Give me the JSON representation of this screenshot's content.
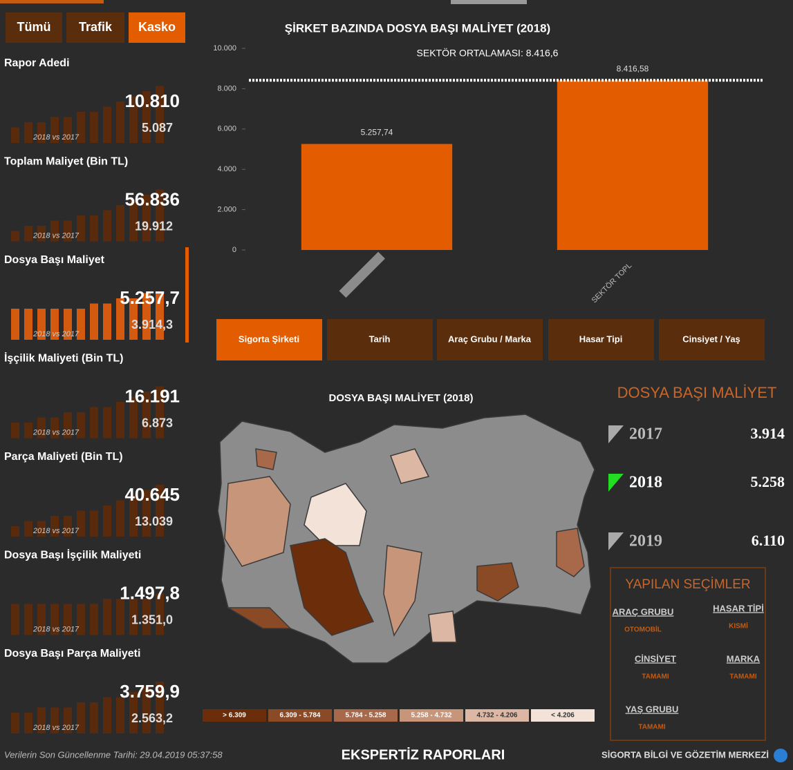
{
  "tabs": [
    "Tümü",
    "Trafik",
    "Kasko"
  ],
  "kpis": [
    {
      "label": "Rapor Adedi",
      "value": "10.810",
      "previous": "5.087",
      "caption": "2018 vs 2017",
      "bars": [
        3,
        4,
        4,
        5,
        5,
        6,
        6,
        7,
        8,
        9,
        10,
        11
      ]
    },
    {
      "label": "Toplam Maliyet (Bin TL)",
      "value": "56.836",
      "previous": "19.912",
      "caption": "2018 vs 2017",
      "bars": [
        2,
        3,
        3,
        4,
        4,
        5,
        5,
        6,
        7,
        8,
        9,
        10
      ]
    },
    {
      "label": "Dosya Başı Maliyet",
      "value": "5.257,7",
      "previous": "3.914,3",
      "caption": "2018 vs 2017",
      "bars": [
        6,
        6,
        6,
        6,
        6,
        6,
        7,
        7,
        8,
        8,
        9,
        9
      ]
    },
    {
      "label": "İşçilik Maliyeti (Bin TL)",
      "value": "16.191",
      "previous": "6.873",
      "caption": "2018 vs 2017",
      "bars": [
        3,
        3,
        4,
        4,
        5,
        5,
        6,
        6,
        7,
        8,
        9,
        10
      ]
    },
    {
      "label": "Parça Maliyeti (Bin TL)",
      "value": "40.645",
      "previous": "13.039",
      "caption": "2018 vs 2017",
      "bars": [
        2,
        3,
        3,
        4,
        4,
        5,
        5,
        6,
        7,
        8,
        9,
        10
      ]
    },
    {
      "label": "Dosya Başı İşçilik Maliyeti",
      "value": "1.497,8",
      "previous": "1.351,0",
      "caption": "2018 vs 2017",
      "bars": [
        6,
        6,
        6,
        6,
        6,
        6,
        6,
        7,
        7,
        7,
        7,
        8
      ]
    },
    {
      "label": "Dosya Başı Parça Maliyeti",
      "value": "3.759,9",
      "previous": "2.563,2",
      "caption": "2018 vs 2017",
      "bars": [
        4,
        4,
        5,
        5,
        5,
        6,
        6,
        7,
        7,
        8,
        9,
        10
      ]
    }
  ],
  "chart_data": {
    "type": "bar",
    "title": "ŞİRKET BAZINDA DOSYA BAŞI MALİYET (2018)",
    "subtitle": "SEKTÖR ORTALAMASI: 8.416,6",
    "categories": [
      null,
      "SEKTÖR TOPL"
    ],
    "values": [
      5257.74,
      8416.58
    ],
    "value_labels": [
      "5.257,74",
      "8.416,58"
    ],
    "color": "#e35d00",
    "average_line": 8416.6,
    "ylim": [
      0,
      10000
    ],
    "yticks": [
      0,
      {
        "value": 2000,
        "label": "2.000"
      },
      {
        "value": 4000,
        "label": "4.000"
      },
      {
        "value": 6000,
        "label": "6.000"
      },
      {
        "value": 8000,
        "label": "8.000"
      },
      {
        "value": 10000,
        "label": "10.000"
      }
    ]
  },
  "nav": [
    "Sigorta Şirketi",
    "Tarih",
    "Araç Grubu / Marka",
    "Hasar Tipi",
    "Cinsiyet / Yaş"
  ],
  "map": {
    "title": "DOSYA BAŞI MALİYET (2018)",
    "legend": [
      {
        "label": "> 6.309",
        "color": "#6b2d0a"
      },
      {
        "label": "6.309 - 5.784",
        "color": "#8a4a26"
      },
      {
        "label": "5.784 - 5.258",
        "color": "#a8694a"
      },
      {
        "label": "5.258 - 4.732",
        "color": "#c6957a"
      },
      {
        "label": "4.732 - 4.206",
        "color": "#dcb8a4"
      },
      {
        "label": "< 4.206",
        "color": "#f2e2d8"
      }
    ]
  },
  "summary": {
    "title": "DOSYA BAŞI MALİYET",
    "rows": [
      {
        "year": "2017",
        "value": "3.914"
      },
      {
        "year": "2018",
        "value": "5.258"
      },
      {
        "year": "2019",
        "value": "6.110"
      }
    ]
  },
  "selections": {
    "title": "YAPILAN SEÇİMLER",
    "items": [
      {
        "name": "ARAÇ GRUBU",
        "value": "OTOMOBİL"
      },
      {
        "name": "HASAR TİPİ",
        "value": "KISMİ"
      },
      {
        "name": "CİNSİYET",
        "value": "TAMAMI"
      },
      {
        "name": "MARKA",
        "value": "TAMAMI"
      },
      {
        "name": "YAŞ GRUBU",
        "value": "TAMAMI"
      }
    ]
  },
  "footer": {
    "updated": "Verilerin Son Güncellenme Tarihi: 29.04.2019 05:37:58",
    "center": "EKSPERTİZ RAPORLARI",
    "right": "SİGORTA BİLGİ VE GÖZETİM MERKEZİ"
  }
}
